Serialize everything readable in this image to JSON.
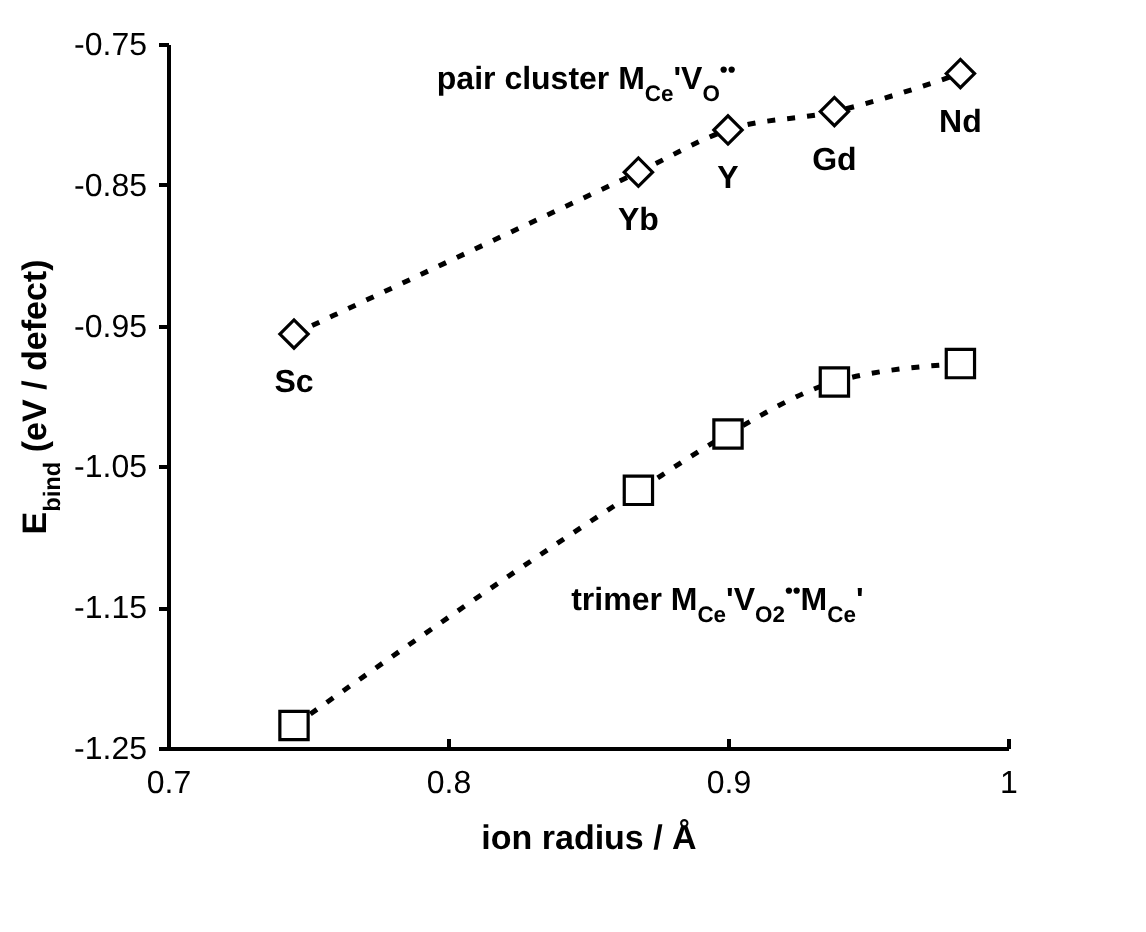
{
  "chart_data": {
    "type": "line",
    "xlabel": "ion radius / Å",
    "ylabel": "E$_{bind}$ (eV / defect)",
    "x": [
      0.745,
      0.868,
      0.9,
      0.938,
      0.983
    ],
    "series": [
      {
        "name": "pair cluster M$_{Ce}$'V$_{O}$$^{••}$",
        "color": "#000000",
        "marker": "diamond",
        "values": [
          -0.956,
          -0.841,
          -0.811,
          -0.798,
          -0.771
        ]
      },
      {
        "name": "trimer M$_{Ce}$'V$_{O2}$$^{••}$M$_{Ce}$'",
        "color": "#000000",
        "marker": "square",
        "values": [
          -1.234,
          -1.067,
          -1.027,
          -0.99,
          -0.977
        ]
      }
    ],
    "xlim": [
      0.7,
      1
    ],
    "xticks": [
      0.7,
      0.8,
      0.9,
      1
    ],
    "ylim": [
      -1.25,
      -0.75
    ],
    "yticks": [
      -1.25,
      -1.15,
      -1.05,
      -0.95,
      -0.85,
      -0.75
    ],
    "grid": false,
    "line_style": "dashed",
    "annotations": [
      {
        "text": "Sc",
        "x": 0.745,
        "y": -0.956
      },
      {
        "text": "Yb",
        "x": 0.868,
        "y": -0.841
      },
      {
        "text": "Y",
        "x": 0.9,
        "y": -0.811
      },
      {
        "text": "Gd",
        "x": 0.938,
        "y": -0.798
      },
      {
        "text": "Nd",
        "x": 0.983,
        "y": -0.771
      }
    ]
  }
}
